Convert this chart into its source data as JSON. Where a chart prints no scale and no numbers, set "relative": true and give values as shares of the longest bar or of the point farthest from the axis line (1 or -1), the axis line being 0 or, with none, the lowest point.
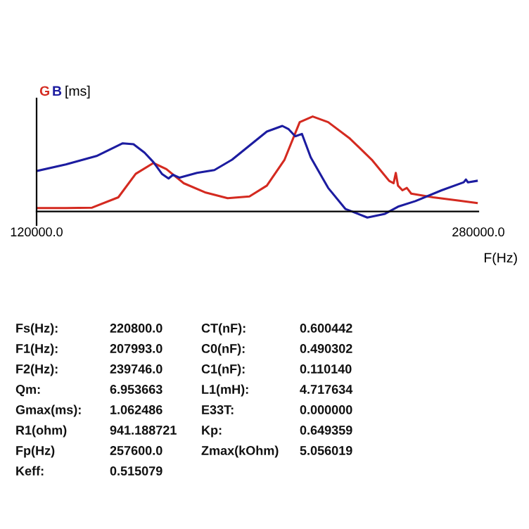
{
  "chart_data": {
    "type": "line",
    "relative": true,
    "xlabel": "F(Hz)",
    "ylabel": "[ms]",
    "xlim": [
      120000,
      280000
    ],
    "xticks": [
      {
        "value": 120000,
        "label": "120000.0"
      },
      {
        "value": 280000,
        "label": "280000.0"
      }
    ],
    "grid": false,
    "marker": "none",
    "line_style": "solid",
    "series": [
      {
        "name": "G",
        "color": "#d42a20",
        "x": [
          120000,
          130600,
          140100,
          149600,
          155900,
          162300,
          167000,
          173300,
          181300,
          189200,
          197100,
          203400,
          209800,
          215300,
          220000,
          225600,
          233500,
          241400,
          247700,
          249300,
          250100,
          250900,
          252500,
          254100,
          255700,
          263600,
          273100,
          279400
        ],
        "values": [
          0.035,
          0.035,
          0.04,
          0.149,
          0.396,
          0.51,
          0.446,
          0.297,
          0.198,
          0.139,
          0.158,
          0.272,
          0.545,
          0.941,
          1.0,
          0.941,
          0.767,
          0.545,
          0.322,
          0.297,
          0.406,
          0.272,
          0.223,
          0.248,
          0.188,
          0.149,
          0.114,
          0.089
        ]
      },
      {
        "name": "B",
        "color": "#1c1ca0",
        "x": [
          120000,
          130600,
          141700,
          151200,
          155100,
          159100,
          162300,
          165400,
          167800,
          169400,
          171800,
          178100,
          184400,
          190800,
          197100,
          203400,
          209000,
          211300,
          213700,
          216100,
          219300,
          225600,
          231900,
          239800,
          246200,
          250900,
          257200,
          266700,
          274700,
          275500,
          276200,
          279400
        ],
        "values": [
          0.426,
          0.495,
          0.584,
          0.718,
          0.708,
          0.619,
          0.52,
          0.396,
          0.347,
          0.386,
          0.356,
          0.406,
          0.436,
          0.545,
          0.693,
          0.842,
          0.901,
          0.866,
          0.792,
          0.817,
          0.569,
          0.248,
          0.025,
          -0.064,
          -0.025,
          0.05,
          0.109,
          0.223,
          0.307,
          0.337,
          0.307,
          0.322
        ]
      }
    ],
    "annotations": [
      "Fs(Hz):",
      "220800.0",
      "CT(nF):",
      "0.600442",
      "F1(Hz):",
      "207993.0",
      "C0(nF):",
      "0.490302",
      "F2(Hz):",
      "239746.0",
      "C1(nF):",
      "0.110140",
      "Qm:",
      "6.953663",
      "L1(mH):",
      "4.717634",
      "Gmax(ms):",
      "1.062486",
      "E33T:",
      "0.000000",
      "R1(ohm)",
      "941.188721",
      "Kp:",
      "0.649359",
      "Fp(Hz)",
      "257600.0",
      "Zmax(kOhm)",
      "5.056019",
      "Keff:",
      "0.515079"
    ]
  }
}
